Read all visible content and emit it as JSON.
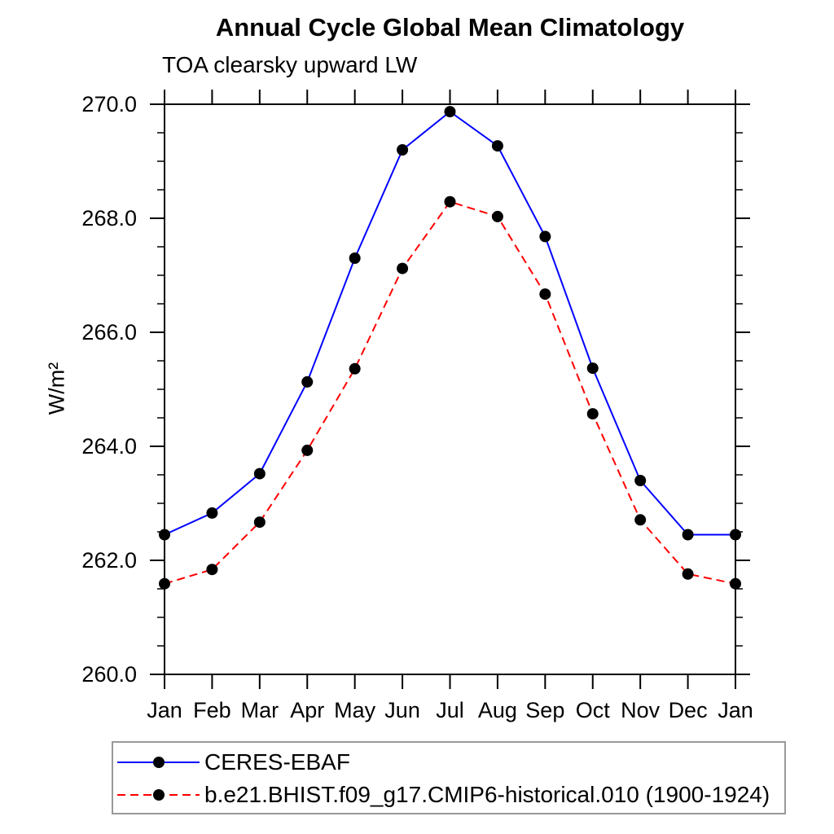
{
  "chart_data": {
    "type": "line",
    "title": "Annual Cycle Global Mean Climatology",
    "subtitle": "TOA clearsky upward LW",
    "ylabel": "W/m²",
    "xlabel": "",
    "x_categories": [
      "Jan",
      "Feb",
      "Mar",
      "Apr",
      "May",
      "Jun",
      "Jul",
      "Aug",
      "Sep",
      "Oct",
      "Nov",
      "Dec",
      "Jan"
    ],
    "ylim": [
      260.0,
      270.0
    ],
    "y_major_tick_step": 2.0,
    "y_minor_tick_step": 0.5,
    "y_tick_labels": [
      "260.0",
      "262.0",
      "264.0",
      "266.0",
      "268.0",
      "270.0"
    ],
    "grid": false,
    "legend_position": "bottom-left-box",
    "axis_color": "#000000",
    "marker": "filled-circle",
    "marker_color": "#000000",
    "series": [
      {
        "name": "CERES-EBAF",
        "color": "#0000ff",
        "line_style": "solid",
        "values": [
          262.45,
          262.83,
          263.52,
          265.13,
          267.3,
          269.2,
          269.87,
          269.27,
          267.68,
          265.37,
          263.4,
          262.45,
          262.45
        ]
      },
      {
        "name": "b.e21.BHIST.f09_g17.CMIP6-historical.010 (1900-1924)",
        "color": "#ff0000",
        "line_style": "dashed",
        "values": [
          261.59,
          261.84,
          262.67,
          263.93,
          265.36,
          267.12,
          268.29,
          268.03,
          266.67,
          264.57,
          262.71,
          261.76,
          261.59
        ]
      }
    ]
  }
}
